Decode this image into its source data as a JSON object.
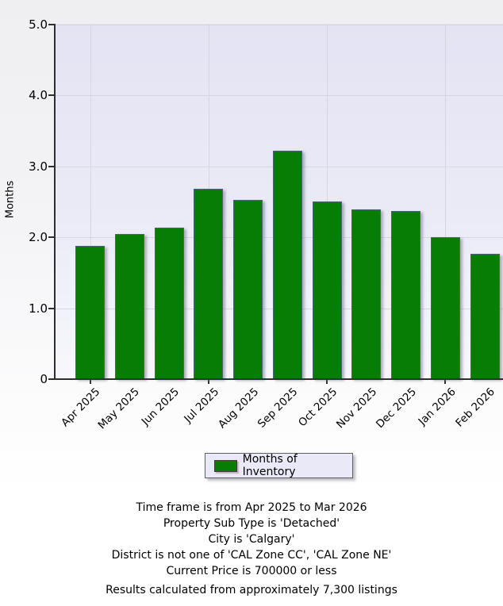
{
  "chart_data": {
    "type": "bar",
    "title": "",
    "ylabel": "Months",
    "categories": [
      "Apr 2025",
      "May 2025",
      "Jun 2025",
      "Jul 2025",
      "Aug 2025",
      "Sep 2025",
      "Oct 2025",
      "Nov 2025",
      "Dec 2025",
      "Jan 2026",
      "Feb 2026"
    ],
    "values": [
      1.88,
      2.05,
      2.13,
      2.68,
      2.53,
      3.22,
      2.5,
      2.39,
      2.37,
      2.0,
      1.76
    ],
    "ylim": [
      0,
      5
    ],
    "ytick_labels": [
      "0",
      "1.0",
      "2.0",
      "3.0",
      "4.0",
      "5.0"
    ],
    "grid": true,
    "legend": {
      "label": "Months of Inventory",
      "position": "bottom"
    },
    "bar_color": "#067e06"
  },
  "footer": {
    "filters": [
      "Time frame is from Apr 2025 to Mar 2026",
      "Property Sub Type is 'Detached'",
      "City is 'Calgary'",
      "District is not one of 'CAL Zone CC', 'CAL Zone NE'",
      "Current Price is 700000 or less"
    ],
    "results_note": "Results calculated from approximately 7,300 listings"
  }
}
